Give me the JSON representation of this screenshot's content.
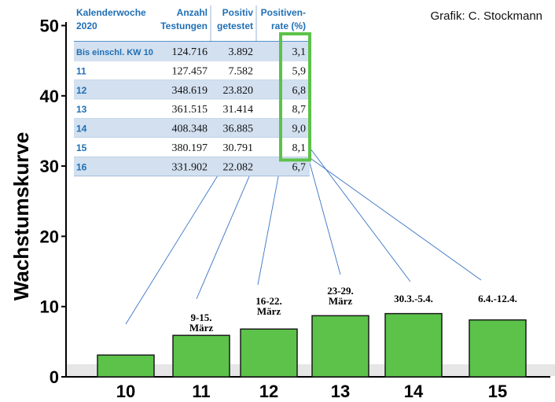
{
  "chart_data": {
    "type": "bar",
    "ylabel": "Wachstumskurve",
    "credit": "Grafik: C. Stockmann",
    "ylim": [
      0,
      50
    ],
    "yticks": [
      "0",
      "10",
      "20",
      "30",
      "40",
      "50"
    ],
    "categories": [
      "10",
      "11",
      "12",
      "13",
      "14",
      "15"
    ],
    "values": [
      3.1,
      5.9,
      6.8,
      8.7,
      9.0,
      8.1
    ],
    "bar_color": "#5cc24a",
    "highlight_color": "#5cc24a",
    "annotations": [
      {
        "category": "11",
        "lines": [
          "9-15.",
          "März"
        ]
      },
      {
        "category": "12",
        "lines": [
          "16-22.",
          "März"
        ]
      },
      {
        "category": "13",
        "lines": [
          "23-29.",
          "März"
        ]
      },
      {
        "category": "14",
        "lines": [
          "30.3.-5.4."
        ]
      },
      {
        "category": "15",
        "lines": [
          "6.4.-12.4."
        ]
      }
    ],
    "table": {
      "headers": [
        [
          "Kalenderwoche",
          "2020"
        ],
        [
          "Anzahl",
          "Testungen"
        ],
        [
          "Positiv",
          "getestet"
        ],
        [
          "Positiven-",
          "rate (%)"
        ]
      ],
      "rows": [
        [
          "Bis einschl. KW 10",
          "124.716",
          "3.892",
          "3,1"
        ],
        [
          "11",
          "127.457",
          "7.582",
          "5,9"
        ],
        [
          "12",
          "348.619",
          "23.820",
          "6,8"
        ],
        [
          "13",
          "361.515",
          "31.414",
          "8,7"
        ],
        [
          "14",
          "408.348",
          "36.885",
          "9,0"
        ],
        [
          "15",
          "380.197",
          "30.791",
          "8,1"
        ],
        [
          "16",
          "331.902",
          "22.082",
          "6,7"
        ]
      ],
      "header_color": "#1f6fb5",
      "row_shade": "#d2e0f0"
    }
  }
}
